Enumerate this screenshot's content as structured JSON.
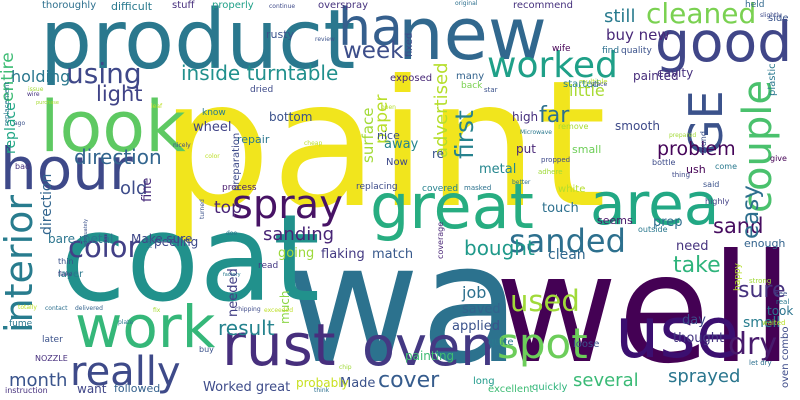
{
  "words": [
    {
      "text": "paint",
      "color": "#f1e51d"
    },
    {
      "text": "wa",
      "color": "#2c728e"
    },
    {
      "text": "well",
      "color": "#440154"
    },
    {
      "text": "coat",
      "color": "#21918c"
    },
    {
      "text": "product",
      "color": "#2a788e"
    },
    {
      "text": "look",
      "color": "#5ec962"
    },
    {
      "text": "new",
      "color": "#31688e"
    },
    {
      "text": "use",
      "color": "#3b0f70"
    },
    {
      "text": "great",
      "color": "#27ad81"
    },
    {
      "text": "area",
      "color": "#22a884"
    },
    {
      "text": "hour",
      "color": "#3e4989"
    },
    {
      "text": "work",
      "color": "#35b779"
    },
    {
      "text": "rust",
      "color": "#472f7d"
    },
    {
      "text": "oven",
      "color": "#443983"
    },
    {
      "text": "good",
      "color": "#404688"
    },
    {
      "text": "ha",
      "color": "#355f8d"
    },
    {
      "text": "couple",
      "color": "#4ac16d"
    },
    {
      "text": "GE",
      "color": "#3b528b"
    },
    {
      "text": "spray",
      "color": "#471365"
    },
    {
      "text": "really",
      "color": "#3e4a89"
    },
    {
      "text": "spot",
      "color": "#6ccd5a"
    },
    {
      "text": "worked",
      "color": "#1fa088"
    },
    {
      "text": "interior",
      "color": "#287c8e"
    },
    {
      "text": "sanded",
      "color": "#2d708e"
    },
    {
      "text": "using",
      "color": "#3f4889"
    },
    {
      "text": "color",
      "color": "#424086"
    },
    {
      "text": "used",
      "color": "#a0da39"
    },
    {
      "text": "dry",
      "color": "#481a6c"
    },
    {
      "text": "cleaned",
      "color": "#7ad151"
    },
    {
      "text": "inside turntable",
      "color": "#21908d"
    },
    {
      "text": "week",
      "color": "#3d4e8a"
    },
    {
      "text": "light",
      "color": "#404387"
    },
    {
      "text": "first",
      "color": "#26828e"
    },
    {
      "text": "advertised",
      "color": "#b5de2b"
    },
    {
      "text": "problem",
      "color": "#450559"
    },
    {
      "text": "direction",
      "color": "#32658e"
    },
    {
      "text": "sanding",
      "color": "#482576"
    },
    {
      "text": "bought",
      "color": "#1f998a"
    },
    {
      "text": "sand",
      "color": "#470d60"
    },
    {
      "text": "take",
      "color": "#2fb47c"
    },
    {
      "text": "easy",
      "color": "#2e6f8e"
    },
    {
      "text": "sure",
      "color": "#46327e"
    },
    {
      "text": "result",
      "color": "#25838e"
    },
    {
      "text": "sprayed",
      "color": "#2a768e"
    },
    {
      "text": "several",
      "color": "#3aba76"
    },
    {
      "text": "cover",
      "color": "#365c8d"
    },
    {
      "text": "month",
      "color": "#3a548c"
    },
    {
      "text": "still",
      "color": "#297b8e"
    },
    {
      "text": "buy new",
      "color": "#482878"
    },
    {
      "text": "far",
      "color": "#2d718e"
    },
    {
      "text": "paper",
      "color": "#b8de29"
    },
    {
      "text": "surface",
      "color": "#a2da37"
    },
    {
      "text": "top",
      "color": "#482475"
    },
    {
      "text": "old",
      "color": "#3e4c8a"
    },
    {
      "text": "entire",
      "color": "#3dbc74"
    },
    {
      "text": "holding",
      "color": "#2a778e"
    },
    {
      "text": "replace",
      "color": "#21a685"
    },
    {
      "text": "direction",
      "color": "#32658e"
    },
    {
      "text": "job",
      "color": "#2d708e"
    },
    {
      "text": "saved",
      "color": "#33638d"
    },
    {
      "text": "applied",
      "color": "#3b528b"
    },
    {
      "text": "smell",
      "color": "#287d8e"
    },
    {
      "text": "day",
      "color": "#3e4a89"
    },
    {
      "text": "thought",
      "color": "#453781"
    },
    {
      "text": "need",
      "color": "#46337e"
    },
    {
      "text": "clean",
      "color": "#31688e"
    },
    {
      "text": "Worked great",
      "color": "#3e4c8a"
    },
    {
      "text": "Made",
      "color": "#3b528b"
    },
    {
      "text": "followed",
      "color": "#34618d"
    },
    {
      "text": "want",
      "color": "#404688"
    },
    {
      "text": "needed",
      "color": "#423f85"
    },
    {
      "text": "much",
      "color": "#8bd646"
    },
    {
      "text": "bare metal",
      "color": "#2b758e"
    },
    {
      "text": "Make sure",
      "color": "#3f4788"
    },
    {
      "text": "going",
      "color": "#9dd93b"
    },
    {
      "text": "flaking",
      "color": "#443a83"
    },
    {
      "text": "match",
      "color": "#38598c"
    },
    {
      "text": "painting",
      "color": "#3fbc73"
    },
    {
      "text": "quite",
      "color": "#29798e"
    },
    {
      "text": "loose",
      "color": "#3b528b"
    },
    {
      "text": "quickly",
      "color": "#2fb47c"
    },
    {
      "text": "excellent",
      "color": "#3dbc74"
    },
    {
      "text": "probably",
      "color": "#c8e020"
    },
    {
      "text": "long",
      "color": "#1f9a8a"
    },
    {
      "text": "took",
      "color": "#2b748e"
    },
    {
      "text": "enough",
      "color": "#33638d"
    },
    {
      "text": "little",
      "color": "#a8db34"
    },
    {
      "text": "smooth",
      "color": "#3e4a89"
    },
    {
      "text": "metal",
      "color": "#24868e"
    },
    {
      "text": "put",
      "color": "#482677"
    },
    {
      "text": "small",
      "color": "#6ece58"
    },
    {
      "text": "away",
      "color": "#25858e"
    },
    {
      "text": "nice",
      "color": "#3c4f8a"
    },
    {
      "text": "Now",
      "color": "#3e4989"
    },
    {
      "text": "re",
      "color": "#3a548c"
    },
    {
      "text": "high",
      "color": "#46307e"
    },
    {
      "text": "touch",
      "color": "#2d708e"
    },
    {
      "text": "white",
      "color": "#b5de2b"
    },
    {
      "text": "prep",
      "color": "#2e6f8e"
    },
    {
      "text": "seems",
      "color": "#481668"
    },
    {
      "text": "fine",
      "color": "#472a7a"
    },
    {
      "text": "peeling",
      "color": "#3e4a89"
    },
    {
      "text": "wheel",
      "color": "#414487"
    },
    {
      "text": "repair",
      "color": "#2a768e"
    },
    {
      "text": "bottom",
      "color": "#3b528b"
    },
    {
      "text": "painted",
      "color": "#472d7b"
    },
    {
      "text": "stuff",
      "color": "#472f7d"
    },
    {
      "text": "overspray",
      "color": "#46337e"
    },
    {
      "text": "recommend",
      "color": "#46327e"
    },
    {
      "text": "difficult",
      "color": "#29798e"
    },
    {
      "text": "thoroughly",
      "color": "#2d708e"
    },
    {
      "text": "properly",
      "color": "#1fa088"
    },
    {
      "text": "rusty",
      "color": "#3b528b"
    },
    {
      "text": "held",
      "color": "#31688e"
    },
    {
      "text": "side",
      "color": "#3a548c"
    },
    {
      "text": "fixed",
      "color": "#3e4a89"
    },
    {
      "text": "many",
      "color": "#33638d"
    },
    {
      "text": "exposed",
      "color": "#482878"
    },
    {
      "text": "cavity",
      "color": "#46307e"
    },
    {
      "text": "started",
      "color": "#25838e"
    },
    {
      "text": "quality",
      "color": "#3b528b"
    },
    {
      "text": "find",
      "color": "#2d708e"
    },
    {
      "text": "back",
      "color": "#7ad151"
    },
    {
      "text": "multiple",
      "color": "#b8de29"
    },
    {
      "text": "plastic",
      "color": "#2a788e"
    },
    {
      "text": "wife",
      "color": "#440154"
    },
    {
      "text": "dried",
      "color": "#3e4a89"
    },
    {
      "text": "know",
      "color": "#287c8e"
    },
    {
      "text": "process",
      "color": "#481b6d"
    },
    {
      "text": "replacing",
      "color": "#3e4c8a"
    },
    {
      "text": "covered",
      "color": "#26828e"
    },
    {
      "text": "masked",
      "color": "#2c728e"
    },
    {
      "text": "coverage",
      "color": "#482576"
    },
    {
      "text": "outside",
      "color": "#2a788e"
    },
    {
      "text": "highly",
      "color": "#424086"
    },
    {
      "text": "said",
      "color": "#3b528b"
    },
    {
      "text": "come",
      "color": "#29798e"
    },
    {
      "text": "give",
      "color": "#440154"
    },
    {
      "text": "thing",
      "color": "#3e4a89"
    },
    {
      "text": "bottle",
      "color": "#3e4c8a"
    },
    {
      "text": "found",
      "color": "#3b528b"
    },
    {
      "text": "prepared",
      "color": "#a2da37"
    },
    {
      "text": "layer",
      "color": "#2a788e"
    },
    {
      "text": "thin",
      "color": "#3b528b"
    },
    {
      "text": "flake",
      "color": "#424086"
    },
    {
      "text": "read",
      "color": "#443983"
    },
    {
      "text": "fume",
      "color": "#2a768e"
    },
    {
      "text": "later",
      "color": "#3b528b"
    },
    {
      "text": "NOZZLE",
      "color": "#472f7d"
    },
    {
      "text": "instruction",
      "color": "#46307e"
    },
    {
      "text": "oven combo",
      "color": "#3e4c8a"
    },
    {
      "text": "let dry",
      "color": "#2d708e"
    },
    {
      "text": "happy",
      "color": "#b5de2b"
    },
    {
      "text": "strong",
      "color": "#a0da39"
    },
    {
      "text": "real",
      "color": "#29798e"
    },
    {
      "text": "see",
      "color": "#3b528b"
    },
    {
      "text": "waited",
      "color": "#b8de29"
    },
    {
      "text": "replacement",
      "color": "#2a788e"
    },
    {
      "text": "issue",
      "color": "#a2da37"
    },
    {
      "text": "wire",
      "color": "#46327e"
    },
    {
      "text": "purchase",
      "color": "#a8db34"
    },
    {
      "text": "ago",
      "color": "#3b528b"
    },
    {
      "text": "bad",
      "color": "#46327e"
    },
    {
      "text": "leaf",
      "color": "#bddf26"
    },
    {
      "text": "nicely",
      "color": "#3e4a89"
    },
    {
      "text": "color",
      "color": "#bddf26"
    },
    {
      "text": "adequately",
      "color": "#3b528b"
    },
    {
      "text": "totally",
      "color": "#bddf26"
    },
    {
      "text": "contact",
      "color": "#2d708e"
    },
    {
      "text": "delivered",
      "color": "#33638d"
    },
    {
      "text": "plate",
      "color": "#2a788e"
    },
    {
      "text": "fix",
      "color": "#a8db34"
    },
    {
      "text": "chipping",
      "color": "#3e4a89"
    },
    {
      "text": "exceeded",
      "color": "#bddf26"
    },
    {
      "text": "buy",
      "color": "#3b528b"
    },
    {
      "text": "think",
      "color": "#2d708e"
    },
    {
      "text": "chip",
      "color": "#a0da39"
    },
    {
      "text": "left",
      "color": "#2d708e"
    },
    {
      "text": "doe",
      "color": "#2a788e"
    },
    {
      "text": "factory",
      "color": "#29798e"
    },
    {
      "text": "turned",
      "color": "#3b528b"
    },
    {
      "text": "preparation",
      "color": "#3e4a89"
    },
    {
      "text": "cheap",
      "color": "#bddf26"
    },
    {
      "text": "open",
      "color": "#b5de2b"
    },
    {
      "text": "adhere",
      "color": "#a0da39"
    },
    {
      "text": "better",
      "color": "#2d708e"
    },
    {
      "text": "propped",
      "color": "#3e4a89"
    },
    {
      "text": "Microwave",
      "color": "#2a788e"
    },
    {
      "text": "remove",
      "color": "#a8db34"
    },
    {
      "text": "place",
      "color": "#3e4a89"
    },
    {
      "text": "star",
      "color": "#3b528b"
    },
    {
      "text": "original",
      "color": "#2d708e"
    },
    {
      "text": "continue",
      "color": "#3e4a89"
    },
    {
      "text": "review",
      "color": "#3b528b"
    },
    {
      "text": "slightly",
      "color": "#3e4a89"
    },
    {
      "text": "ush",
      "color": "#440154"
    }
  ]
}
